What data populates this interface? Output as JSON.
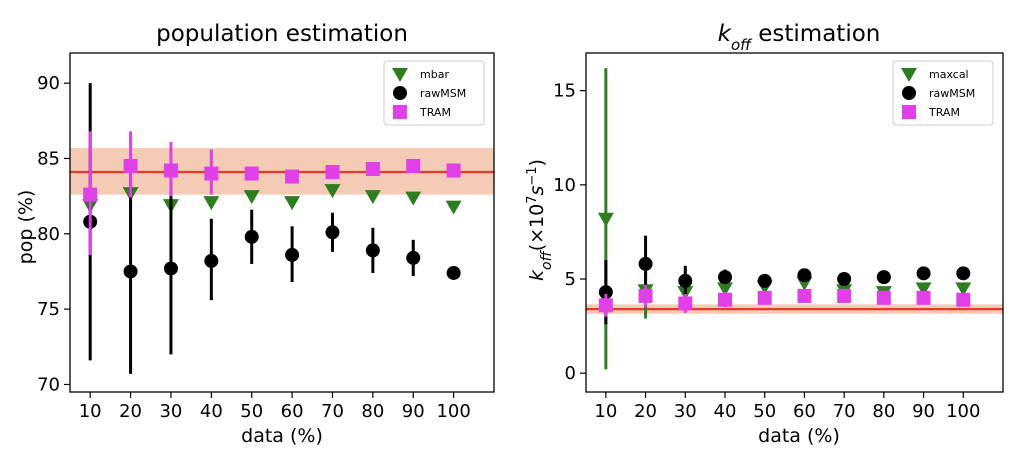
{
  "chart_data": [
    {
      "type": "scatter",
      "title": "population estimation",
      "xlabel": "data (%)",
      "ylabel": "pop (%)",
      "x": [
        10,
        20,
        30,
        40,
        50,
        60,
        70,
        80,
        90,
        100
      ],
      "xticks": [
        "10",
        "20",
        "30",
        "40",
        "50",
        "60",
        "70",
        "80",
        "90",
        "100"
      ],
      "xlim": [
        5,
        110
      ],
      "ylim": [
        69.5,
        92
      ],
      "yticks": [
        "70",
        "75",
        "80",
        "85",
        "90"
      ],
      "ytick_values": [
        70,
        75,
        80,
        85,
        90
      ],
      "reference": {
        "value": 84.1,
        "band": [
          82.6,
          85.7
        ],
        "line_color": "#e8392c",
        "band_color": "#f2c2a8"
      },
      "legend_position": "top-right",
      "series": [
        {
          "name": "mbar",
          "marker": "triangle-down",
          "color": "#2e7d1f",
          "values": [
            81.9,
            82.7,
            81.9,
            82.1,
            82.5,
            82.1,
            82.9,
            82.5,
            82.4,
            81.8
          ],
          "err_low": [
            null,
            null,
            null,
            null,
            null,
            null,
            null,
            null,
            null,
            null
          ],
          "err_high": [
            null,
            null,
            null,
            null,
            null,
            null,
            null,
            null,
            null,
            null
          ]
        },
        {
          "name": "rawMSM",
          "marker": "circle",
          "color": "#000000",
          "values": [
            80.8,
            77.5,
            77.7,
            78.2,
            79.8,
            78.6,
            80.1,
            78.9,
            78.4,
            77.4
          ],
          "err_low": [
            71.6,
            70.7,
            72.0,
            75.6,
            78.0,
            76.8,
            78.8,
            77.4,
            77.2,
            null
          ],
          "err_high": [
            90.0,
            84.4,
            83.4,
            81.0,
            81.6,
            80.5,
            81.4,
            80.4,
            79.6,
            null
          ]
        },
        {
          "name": "TRAM",
          "marker": "square",
          "color": "#e040e8",
          "values": [
            82.6,
            84.5,
            84.2,
            84.0,
            84.0,
            83.8,
            84.1,
            84.3,
            84.5,
            84.2
          ],
          "err_low": [
            78.6,
            82.4,
            82.5,
            82.6,
            null,
            null,
            null,
            null,
            null,
            null
          ],
          "err_high": [
            86.8,
            86.8,
            86.1,
            85.6,
            null,
            null,
            null,
            null,
            null,
            null
          ]
        }
      ]
    },
    {
      "type": "scatter",
      "title_main": "k",
      "title_sub": "off",
      "title_rest": " estimation",
      "xlabel": "data (%)",
      "ylabel_main": "k",
      "ylabel_sub": "off",
      "ylabel_open": "(×10",
      "ylabel_exp": "7",
      "ylabel_unit": "s",
      "ylabel_unit_exp": "−1",
      "ylabel_close": ")",
      "x": [
        10,
        20,
        30,
        40,
        50,
        60,
        70,
        80,
        90,
        100
      ],
      "xticks": [
        "10",
        "20",
        "30",
        "40",
        "50",
        "60",
        "70",
        "80",
        "90",
        "100"
      ],
      "xlim": [
        5,
        110
      ],
      "ylim": [
        -1,
        17
      ],
      "yticks": [
        "0",
        "5",
        "10",
        "15"
      ],
      "ytick_values": [
        0,
        5,
        10,
        15
      ],
      "reference": {
        "value": 3.4,
        "band": [
          3.15,
          3.65
        ],
        "line_color": "#e8392c",
        "band_color": "#f2c2a8"
      },
      "legend_position": "top-right",
      "series": [
        {
          "name": "maxcal",
          "marker": "triangle-down",
          "color": "#2e7d1f",
          "values": [
            8.2,
            4.4,
            4.3,
            4.5,
            4.6,
            4.8,
            4.4,
            4.3,
            4.5,
            4.5
          ],
          "err_low": [
            0.2,
            2.9,
            null,
            null,
            null,
            null,
            null,
            null,
            null,
            null
          ],
          "err_high": [
            16.2,
            5.9,
            null,
            null,
            null,
            null,
            null,
            null,
            null,
            null
          ]
        },
        {
          "name": "rawMSM",
          "marker": "circle",
          "color": "#000000",
          "values": [
            4.3,
            5.8,
            4.9,
            5.1,
            4.9,
            5.2,
            5.0,
            5.1,
            5.3,
            5.3
          ],
          "err_low": [
            2.6,
            4.3,
            4.2,
            4.8,
            null,
            null,
            null,
            null,
            null,
            null
          ],
          "err_high": [
            6.0,
            7.3,
            5.7,
            5.5,
            null,
            null,
            null,
            null,
            null,
            null
          ]
        },
        {
          "name": "TRAM",
          "marker": "square",
          "color": "#e040e8",
          "values": [
            3.6,
            4.1,
            3.7,
            3.9,
            4.0,
            4.1,
            4.1,
            4.0,
            4.0,
            3.9
          ],
          "err_low": [
            3.0,
            3.5,
            3.2,
            3.5,
            null,
            null,
            null,
            null,
            null,
            null
          ],
          "err_high": [
            4.2,
            4.7,
            4.2,
            4.3,
            null,
            null,
            null,
            null,
            null,
            null
          ]
        }
      ]
    }
  ]
}
